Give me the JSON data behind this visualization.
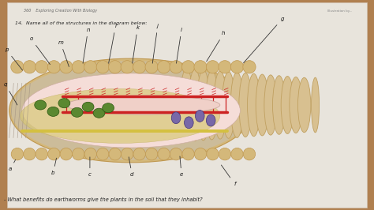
{
  "bg_color": "#b08050",
  "page_bg": "#e8e4dc",
  "page_text_top": "360    Exploring Creation With Biology",
  "page_question": "14.  Name all of the structures in the diagram below:",
  "page_text_bottom": "- What benefits do earthworms give the plants in the soil that they inhabit?",
  "illus_credit": "Illustration by...",
  "worm_body_color": "#d4b87a",
  "worm_segment_color": "#c09850",
  "worm_inner_bg": "#e8c89a",
  "worm_cavity_color": "#f5ddd8",
  "worm_dorsal_vessel_color": "#cc2222",
  "worm_intestine_color": "#f0d0c8",
  "worm_nerve_color": "#d4c040",
  "worm_green_organs": "#5a8830",
  "worm_purple_organs": "#7868a8",
  "worm_right_color": "#d8c090",
  "worm_right_edge": "#c0a060",
  "label_color": "#222222",
  "figsize": [
    4.74,
    2.66
  ],
  "dpi": 100
}
